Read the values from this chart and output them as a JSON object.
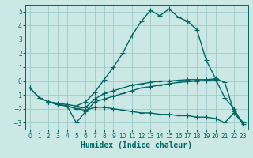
{
  "bg_color": "#cce8e4",
  "grid_color": "#99cccc",
  "line_color": "#006666",
  "line_width": 1.0,
  "marker": "+",
  "marker_size": 4,
  "xlabel": "Humidex (Indice chaleur)",
  "xlabel_fontsize": 7,
  "tick_fontsize": 5.5,
  "xlim": [
    -0.5,
    23.5
  ],
  "ylim": [
    -3.5,
    5.5
  ],
  "yticks": [
    -3,
    -2,
    -1,
    0,
    1,
    2,
    3,
    4,
    5
  ],
  "xticks": [
    0,
    1,
    2,
    3,
    4,
    5,
    6,
    7,
    8,
    9,
    10,
    11,
    12,
    13,
    14,
    15,
    16,
    17,
    18,
    19,
    20,
    21,
    22,
    23
  ],
  "curve1_x": [
    0,
    1,
    2,
    3,
    4,
    5,
    6,
    7,
    8,
    9,
    10,
    11,
    12,
    13,
    14,
    15,
    16,
    17,
    18,
    19,
    20,
    21,
    22,
    23
  ],
  "curve1_y": [
    -0.5,
    -1.2,
    -1.5,
    -1.6,
    -1.7,
    -1.8,
    -1.5,
    -0.8,
    0.1,
    1.0,
    2.0,
    3.3,
    4.3,
    5.1,
    4.7,
    5.2,
    4.6,
    4.3,
    3.7,
    1.5,
    0.2,
    -0.1,
    -2.2,
    -3.0
  ],
  "curve2_x": [
    0,
    1,
    2,
    3,
    4,
    5,
    6,
    7,
    8,
    9,
    10,
    11,
    12,
    13,
    14,
    15,
    16,
    17,
    18,
    19,
    20,
    21,
    22,
    23
  ],
  "curve2_y": [
    -0.5,
    -1.2,
    -1.5,
    -1.7,
    -1.8,
    -2.0,
    -1.9,
    -1.3,
    -0.9,
    -0.7,
    -0.5,
    -0.3,
    -0.2,
    -0.1,
    0.0,
    0.0,
    0.05,
    0.1,
    0.1,
    0.1,
    0.15,
    -1.2,
    -2.0,
    -3.2
  ],
  "curve3_x": [
    2,
    3,
    4,
    5,
    6,
    7,
    8,
    9,
    10,
    11,
    12,
    13,
    14,
    15,
    16,
    17,
    18,
    19,
    20
  ],
  "curve3_y": [
    -1.5,
    -1.7,
    -1.8,
    -3.0,
    -2.2,
    -1.5,
    -1.3,
    -1.1,
    -0.9,
    -0.7,
    -0.5,
    -0.4,
    -0.3,
    -0.2,
    -0.1,
    -0.05,
    0.0,
    0.05,
    0.1
  ],
  "curve4_x": [
    2,
    3,
    4,
    5,
    6,
    7,
    8,
    9,
    10,
    11,
    12,
    13,
    14,
    15,
    16,
    17,
    18,
    19,
    20,
    21,
    22,
    23
  ],
  "curve4_y": [
    -1.5,
    -1.7,
    -1.8,
    -2.0,
    -2.1,
    -1.9,
    -1.9,
    -2.0,
    -2.1,
    -2.2,
    -2.3,
    -2.3,
    -2.4,
    -2.4,
    -2.5,
    -2.5,
    -2.6,
    -2.6,
    -2.7,
    -3.0,
    -2.3,
    -3.1
  ]
}
